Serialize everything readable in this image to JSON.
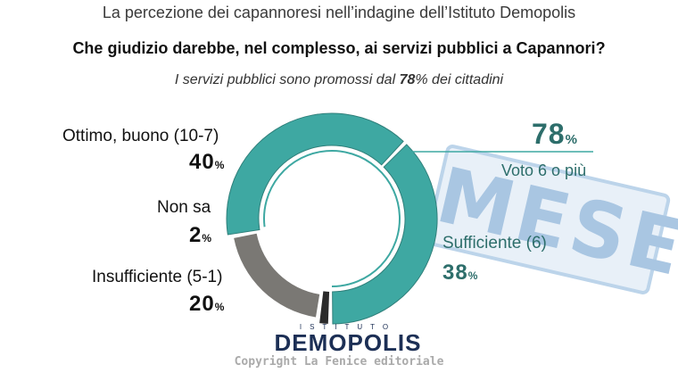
{
  "header": {
    "line1": "La percezione dei capannoresi nell’indagine dell’Istituto Demopolis",
    "question": "Che giudizio darebbe, nel complesso, ai servizi pubblici a Capannori?",
    "subtitle_before": "I servizi pubblici sono promossi dal ",
    "subtitle_value": "78",
    "subtitle_after": "% dei cittadini"
  },
  "chart_data": {
    "type": "pie",
    "style": "donut",
    "slices": [
      {
        "label": "Ottimo, buono (10-7)",
        "value": 40,
        "color": "#3ea8a2"
      },
      {
        "label": "Sufficiente (6)",
        "value": 38,
        "color": "#3ea8a2"
      },
      {
        "label": "Non sa",
        "value": 2,
        "color": "#2b2b2b"
      },
      {
        "label": "Insufficiente (5-1)",
        "value": 20,
        "color": "#7a7874"
      }
    ],
    "summary": {
      "value": "78",
      "unit": "%",
      "label": "Voto 6 o più"
    },
    "percent_unit": "%"
  },
  "branding": {
    "top": "ISTITUTO",
    "name": "DEMOPOLIS",
    "copyright": "Copyright La Fenice editoriale",
    "watermark": "MESE"
  }
}
